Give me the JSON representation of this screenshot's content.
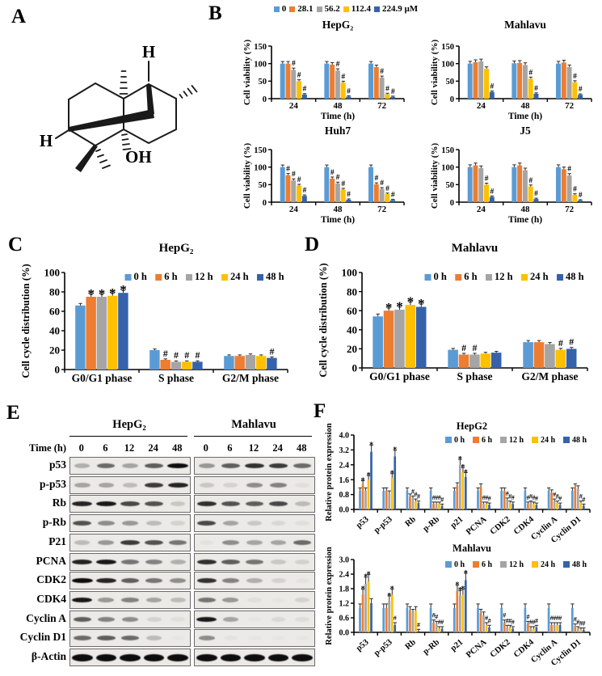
{
  "panels": {
    "A": "A",
    "B": "B",
    "C": "C",
    "D": "D",
    "E": "E",
    "F": "F"
  },
  "colors": {
    "series": [
      "#5B9BD5",
      "#ED7D31",
      "#A5A5A5",
      "#FFC000",
      "#3562AB"
    ]
  },
  "molecule": {
    "h_top": "H",
    "h_left": "H",
    "oh": "OH"
  },
  "panelB_legend": {
    "entries": [
      "0",
      "28.1",
      "56.2",
      "112.4",
      "224.9 µM"
    ]
  },
  "panelE": {
    "groups": [
      {
        "title": "HepG₂"
      },
      {
        "title": "Mahlavu"
      }
    ],
    "time_label": "Time (h)",
    "lanes": [
      "0",
      "6",
      "12",
      "24",
      "48"
    ],
    "rows": [
      {
        "label": "p53",
        "h": [
          0.25,
          0.55,
          0.3,
          0.6,
          0.95
        ],
        "m": [
          0.35,
          0.6,
          0.8,
          0.75,
          0.55
        ]
      },
      {
        "label": "p-p53",
        "h": [
          0.3,
          0.3,
          0.2,
          0.75,
          0.85
        ],
        "m": [
          0.15,
          0.1,
          0.4,
          0.45,
          0.05
        ]
      },
      {
        "label": "Rb",
        "h": [
          0.85,
          0.9,
          0.7,
          0.65,
          0.15
        ],
        "m": [
          0.8,
          0.65,
          0.6,
          0.7,
          0.2
        ]
      },
      {
        "label": "p-Rb",
        "h": [
          0.65,
          0.4,
          0.35,
          0.2,
          0.1
        ],
        "m": [
          0.7,
          0.3,
          0.15,
          0.08,
          0.05
        ]
      },
      {
        "label": "P21",
        "h": [
          0.2,
          0.35,
          0.75,
          0.65,
          0.5
        ],
        "m": [
          0.03,
          0.4,
          0.3,
          0.3,
          0.55
        ]
      },
      {
        "label": "PCNA",
        "h": [
          0.85,
          0.9,
          0.5,
          0.45,
          0.25
        ],
        "m": [
          0.8,
          0.6,
          0.5,
          0.15,
          0.1
        ]
      },
      {
        "label": "CDK2",
        "h": [
          0.95,
          0.85,
          0.6,
          0.5,
          0.4
        ],
        "m": [
          0.8,
          0.45,
          0.25,
          0.1,
          0.03
        ]
      },
      {
        "label": "CDK4",
        "h": [
          0.9,
          0.35,
          0.45,
          0.3,
          0.2
        ],
        "m": [
          0.5,
          0.35,
          0.05,
          0.02,
          0.1
        ]
      },
      {
        "label": "Cyclin A",
        "h": [
          0.6,
          0.45,
          0.4,
          0.1,
          0.05
        ],
        "m": [
          0.9,
          0.3,
          0.02,
          0.08,
          0.06
        ]
      },
      {
        "label": "Cyclin D1",
        "h": [
          0.55,
          0.6,
          0.55,
          0.2,
          0.02
        ],
        "m": [
          0.4,
          0.03,
          0.02,
          0.02,
          0.02
        ]
      },
      {
        "label": "β-Actin",
        "h": [
          0.95,
          0.95,
          0.95,
          0.95,
          0.95
        ],
        "m": [
          0.95,
          0.95,
          0.95,
          0.95,
          0.95
        ],
        "thick": true
      }
    ]
  },
  "chart_data": [
    {
      "id": "b_hepg2",
      "type": "bar",
      "title": "HepG₂",
      "ylabel": "Cell viability (%)",
      "xlabel": "Time (h)",
      "categories": [
        "24",
        "48",
        "72"
      ],
      "ymax": 150,
      "yticks": [
        "0",
        "50",
        "100",
        "150"
      ],
      "legend_show": false,
      "series": [
        {
          "name": "0",
          "color": 0,
          "values": [
            100,
            100,
            100
          ],
          "sig": [
            "",
            "",
            ""
          ]
        },
        {
          "name": "28.1",
          "color": 1,
          "values": [
            100,
            97,
            90
          ],
          "sig": [
            "",
            "",
            ""
          ]
        },
        {
          "name": "56.2",
          "color": 2,
          "values": [
            82,
            80,
            60
          ],
          "sig": [
            "#",
            "#",
            "#"
          ]
        },
        {
          "name": "112.4",
          "color": 3,
          "values": [
            50,
            46,
            13
          ],
          "sig": [
            "#",
            "#",
            "#"
          ]
        },
        {
          "name": "224.9",
          "color": 4,
          "values": [
            12,
            6,
            5
          ],
          "sig": [
            "#",
            "#",
            "#"
          ]
        }
      ],
      "err": {
        "base": 2,
        "frac": 0.04
      }
    },
    {
      "id": "b_mahlavu",
      "type": "bar",
      "title": "Mahlavu",
      "ylabel": "Cell viability (%)",
      "xlabel": "Time (h)",
      "categories": [
        "24",
        "48",
        "72"
      ],
      "ymax": 150,
      "yticks": [
        "0",
        "50",
        "100",
        "150"
      ],
      "legend_show": false,
      "series": [
        {
          "name": "0",
          "color": 0,
          "values": [
            100,
            101,
            100
          ],
          "sig": [
            "",
            "",
            ""
          ]
        },
        {
          "name": "28.1",
          "color": 1,
          "values": [
            104,
            102,
            103
          ],
          "sig": [
            "",
            "",
            ""
          ]
        },
        {
          "name": "56.2",
          "color": 2,
          "values": [
            106,
            96,
            90
          ],
          "sig": [
            "",
            "",
            ""
          ]
        },
        {
          "name": "112.4",
          "color": 3,
          "values": [
            85,
            57,
            47
          ],
          "sig": [
            "",
            "#",
            "#"
          ]
        },
        {
          "name": "224.9",
          "color": 4,
          "values": [
            19,
            14,
            11
          ],
          "sig": [
            "#",
            "#",
            "#"
          ]
        }
      ],
      "err": {
        "base": 2,
        "frac": 0.045
      }
    },
    {
      "id": "b_huh7",
      "type": "bar",
      "title": "Huh7",
      "ylabel": "Cell viability (%)",
      "xlabel": "Time (h)",
      "categories": [
        "24",
        "48",
        "72"
      ],
      "ymax": 150,
      "yticks": [
        "0",
        "50",
        "100",
        "150"
      ],
      "legend_show": false,
      "series": [
        {
          "name": "0",
          "color": 0,
          "values": [
            100,
            100,
            100
          ],
          "sig": [
            "",
            "",
            ""
          ]
        },
        {
          "name": "28.1",
          "color": 1,
          "values": [
            77,
            67,
            51
          ],
          "sig": [
            "#",
            "#",
            "#"
          ]
        },
        {
          "name": "56.2",
          "color": 2,
          "values": [
            62,
            53,
            38
          ],
          "sig": [
            "#",
            "#",
            "#"
          ]
        },
        {
          "name": "112.4",
          "color": 3,
          "values": [
            47,
            36,
            23
          ],
          "sig": [
            "#",
            "#",
            "#"
          ]
        },
        {
          "name": "224.9",
          "color": 4,
          "values": [
            18,
            7,
            6
          ],
          "sig": [
            "#",
            "#",
            "#"
          ]
        }
      ],
      "err": {
        "base": 2,
        "frac": 0.04
      }
    },
    {
      "id": "b_j5",
      "type": "bar",
      "title": "J5",
      "ylabel": "Cell viability (%)",
      "xlabel": "Time (h)",
      "categories": [
        "24",
        "48",
        "72"
      ],
      "ymax": 150,
      "yticks": [
        "0",
        "50",
        "100",
        "150"
      ],
      "legend_show": false,
      "series": [
        {
          "name": "0",
          "color": 0,
          "values": [
            100,
            100,
            100
          ],
          "sig": [
            "",
            "",
            ""
          ]
        },
        {
          "name": "28.1",
          "color": 1,
          "values": [
            105,
            105,
            94
          ],
          "sig": [
            "",
            "",
            ""
          ]
        },
        {
          "name": "56.2",
          "color": 2,
          "values": [
            97,
            91,
            76
          ],
          "sig": [
            "",
            "",
            "#"
          ]
        },
        {
          "name": "112.4",
          "color": 3,
          "values": [
            50,
            45,
            21
          ],
          "sig": [
            "#",
            "#",
            "#"
          ]
        },
        {
          "name": "224.9",
          "color": 4,
          "values": [
            15,
            9,
            5
          ],
          "sig": [
            "#",
            "#",
            "#"
          ]
        }
      ],
      "err": {
        "base": 2,
        "frac": 0.045
      }
    },
    {
      "id": "c_hepg2",
      "type": "bar",
      "title": "HepG₂",
      "ylabel": "Cell cycle distribution  (%)",
      "xlabel": "",
      "categories": [
        "G0/G1 phase",
        "S phase",
        "G2/M phase"
      ],
      "ymax": 100,
      "yticks": [
        "0",
        "20",
        "40",
        "60",
        "80",
        "100"
      ],
      "legend_show": true,
      "series": [
        {
          "name": "0 h",
          "color": 0,
          "values": [
            66,
            20,
            14
          ],
          "sig": [
            "",
            "",
            ""
          ]
        },
        {
          "name": "6 h",
          "color": 1,
          "values": [
            75,
            10,
            14
          ],
          "sig": [
            "*",
            "#",
            ""
          ]
        },
        {
          "name": "12 h",
          "color": 2,
          "values": [
            75,
            8,
            15
          ],
          "sig": [
            "*",
            "#",
            ""
          ]
        },
        {
          "name": "24 h",
          "color": 3,
          "values": [
            76,
            8,
            14
          ],
          "sig": [
            "*",
            "#",
            ""
          ]
        },
        {
          "name": "48 h",
          "color": 4,
          "values": [
            79,
            8,
            12
          ],
          "sig": [
            "*",
            "#",
            "#"
          ]
        }
      ],
      "err": {
        "base": 0.8,
        "frac": 0.02
      }
    },
    {
      "id": "d_mahlavu",
      "type": "bar",
      "title": "Mahlavu",
      "ylabel": "Cell cycle distribution  (%)",
      "xlabel": "",
      "categories": [
        "G0/G1 phase",
        "S phase",
        "G2/M phase"
      ],
      "ymax": 100,
      "yticks": [
        "0",
        "20",
        "40",
        "60",
        "80",
        "100"
      ],
      "legend_show": true,
      "series": [
        {
          "name": "0 h",
          "color": 0,
          "values": [
            54,
            19,
            27
          ],
          "sig": [
            "",
            "",
            ""
          ]
        },
        {
          "name": "6 h",
          "color": 1,
          "values": [
            60,
            14,
            27
          ],
          "sig": [
            "*",
            "#",
            ""
          ]
        },
        {
          "name": "12 h",
          "color": 2,
          "values": [
            61,
            14,
            25
          ],
          "sig": [
            "*",
            "#",
            ""
          ]
        },
        {
          "name": "24 h",
          "color": 3,
          "values": [
            66,
            15,
            19
          ],
          "sig": [
            "*",
            "",
            "#"
          ]
        },
        {
          "name": "48 h",
          "color": 4,
          "values": [
            64,
            16,
            20
          ],
          "sig": [
            "*",
            "",
            "#"
          ]
        }
      ],
      "err": {
        "base": 0.9,
        "frac": 0.03
      }
    },
    {
      "id": "f_hepg2",
      "type": "bar",
      "title": "HepG2",
      "ylabel": "Relative protein expression",
      "xlabel": "",
      "categories": [
        "p53",
        "p-p53",
        "Rb",
        "p-Rb",
        "p21",
        "PCNA",
        "CDK2",
        "CDK4",
        "Cyclin A",
        "Cyclin D1"
      ],
      "ymax": 4.0,
      "yticks": [
        "0.0",
        "0.8",
        "1.6",
        "2.4",
        "3.2",
        "4.0"
      ],
      "legend_show": true,
      "rotate_cats": true,
      "series": [
        {
          "name": "0 h",
          "color": 0,
          "values": [
            1,
            1,
            1,
            1,
            1,
            1,
            1,
            1,
            1,
            1
          ],
          "sig": [
            "",
            "",
            "",
            "",
            "",
            "",
            "",
            "",
            "",
            ""
          ]
        },
        {
          "name": "6 h",
          "color": 1,
          "values": [
            1.35,
            1.0,
            0.7,
            0.3,
            1.25,
            1.2,
            1.0,
            0.3,
            0.9,
            1.2
          ],
          "sig": [
            "*",
            "",
            "",
            "#",
            "",
            "",
            "",
            "#",
            "",
            ""
          ]
        },
        {
          "name": "12 h",
          "color": 2,
          "values": [
            1.0,
            0.85,
            0.6,
            0.3,
            2.4,
            0.3,
            0.5,
            0.35,
            0.45,
            1.1
          ],
          "sig": [
            "",
            "",
            "#",
            "#",
            "*",
            "#",
            "#",
            "#",
            "#",
            ""
          ]
        },
        {
          "name": "24 h",
          "color": 3,
          "values": [
            1.6,
            1.7,
            0.45,
            0.3,
            2.0,
            0.3,
            0.35,
            0.3,
            0.35,
            0.35
          ],
          "sig": [
            "*",
            "*",
            "#",
            "#",
            "*",
            "#",
            "#",
            "#",
            "#",
            "#"
          ]
        },
        {
          "name": "48 h",
          "color": 4,
          "values": [
            3.1,
            2.85,
            0.35,
            0.2,
            1.75,
            0.25,
            0.3,
            0.25,
            0.25,
            0.2
          ],
          "sig": [
            "*",
            "*",
            "#",
            "#",
            "*",
            "#",
            "#",
            "#",
            "#",
            "#"
          ]
        }
      ],
      "err": {
        "base": 0.07,
        "frac": 0.09
      }
    },
    {
      "id": "f_mahlavu",
      "type": "bar",
      "title": "Mahlavu",
      "ylabel": "Relative protein expression",
      "xlabel": "",
      "categories": [
        "p53",
        "p-p53",
        "Rb",
        "p-Rb",
        "p21",
        "PCNA",
        "CDK2",
        "CDK4",
        "Cyclin A",
        "Cyclin D1"
      ],
      "ymax": 3.0,
      "yticks": [
        "0.0",
        "0.6",
        "1.2",
        "1.8",
        "2.4",
        "3.0"
      ],
      "legend_show": true,
      "rotate_cats": true,
      "series": [
        {
          "name": "0 h",
          "color": 0,
          "values": [
            1,
            1,
            1,
            1,
            1,
            1,
            1,
            1,
            1,
            1
          ],
          "sig": [
            "",
            "",
            "",
            "",
            "",
            "",
            "",
            "",
            "",
            ""
          ]
        },
        {
          "name": "6 h",
          "color": 1,
          "values": [
            1.55,
            1.0,
            0.9,
            0.4,
            1.7,
            0.8,
            0.4,
            0.35,
            0.3,
            0.25
          ],
          "sig": [
            "*",
            "",
            "",
            "#",
            "*",
            "",
            "#",
            "#",
            "#",
            "#"
          ]
        },
        {
          "name": "12 h",
          "color": 2,
          "values": [
            2.0,
            1.3,
            0.8,
            0.35,
            1.5,
            0.7,
            0.2,
            0.15,
            0.3,
            0.15
          ],
          "sig": [
            "*",
            "*",
            "",
            "#",
            "*",
            "",
            "#",
            "#",
            "#",
            "#"
          ]
        },
        {
          "name": "24 h",
          "color": 3,
          "values": [
            2.1,
            1.55,
            0.9,
            0.15,
            1.55,
            0.3,
            0.2,
            0.15,
            0.3,
            0.1
          ],
          "sig": [
            "*",
            "*",
            "",
            "#",
            "*",
            "#",
            "#",
            "#",
            "#",
            "#"
          ]
        },
        {
          "name": "48 h",
          "color": 4,
          "values": [
            1.2,
            0.3,
            0.05,
            0.15,
            2.15,
            0.2,
            0.15,
            0.2,
            0.3,
            0.1
          ],
          "sig": [
            "",
            "#",
            "#",
            "#",
            "*",
            "#",
            "#",
            "#",
            "#",
            "#"
          ]
        }
      ],
      "err": {
        "base": 0.07,
        "frac": 0.1
      }
    }
  ]
}
